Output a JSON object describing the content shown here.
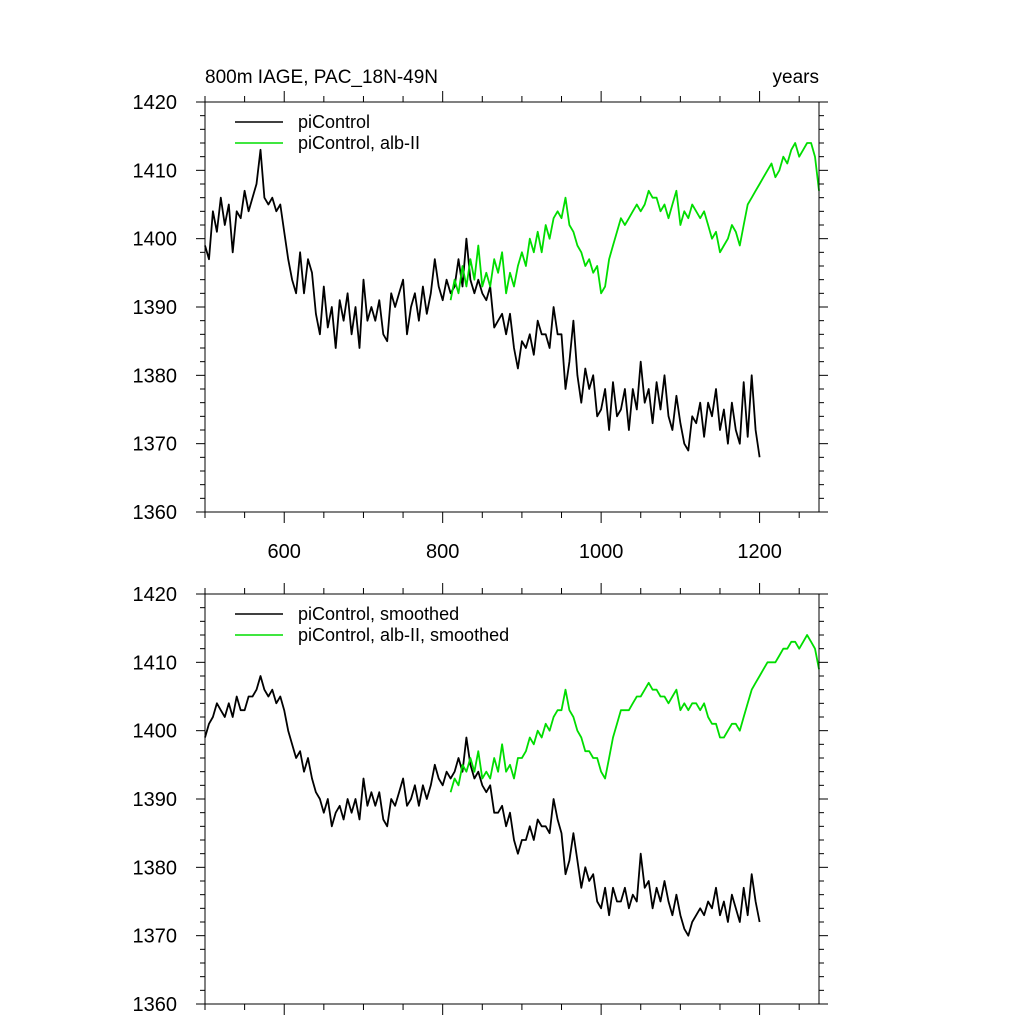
{
  "chart_data": [
    {
      "type": "line",
      "title": "800m IAGE, PAC_18N-49N",
      "title_right": "years",
      "xlim": [
        500,
        1275
      ],
      "ylim": [
        1360,
        1420
      ],
      "xticks": [
        600,
        800,
        1000,
        1200
      ],
      "yticks": [
        1360,
        1370,
        1380,
        1390,
        1400,
        1410,
        1420
      ],
      "show_xtick_labels": true,
      "legend_position": "top-left",
      "series": [
        {
          "name": "piControl",
          "color": "#000000",
          "x": [
            500,
            505,
            510,
            515,
            520,
            525,
            530,
            535,
            540,
            545,
            550,
            555,
            560,
            565,
            570,
            575,
            580,
            585,
            590,
            595,
            600,
            605,
            610,
            615,
            620,
            625,
            630,
            635,
            640,
            645,
            650,
            655,
            660,
            665,
            670,
            675,
            680,
            685,
            690,
            695,
            700,
            705,
            710,
            715,
            720,
            725,
            730,
            735,
            740,
            745,
            750,
            755,
            760,
            765,
            770,
            775,
            780,
            785,
            790,
            795,
            800,
            805,
            810,
            815,
            820,
            825,
            830,
            835,
            840,
            845,
            850,
            855,
            860,
            865,
            870,
            875,
            880,
            885,
            890,
            895,
            900,
            905,
            910,
            915,
            920,
            925,
            930,
            935,
            940,
            945,
            950,
            955,
            960,
            965,
            970,
            975,
            980,
            985,
            990,
            995,
            1000,
            1005,
            1010,
            1015,
            1020,
            1025,
            1030,
            1035,
            1040,
            1045,
            1050,
            1055,
            1060,
            1065,
            1070,
            1075,
            1080,
            1085,
            1090,
            1095,
            1100,
            1105,
            1110,
            1115,
            1120,
            1125,
            1130,
            1135,
            1140,
            1145,
            1150,
            1155,
            1160,
            1165,
            1170,
            1175,
            1180,
            1185,
            1190,
            1195,
            1200
          ],
          "y": [
            1399,
            1397,
            1404,
            1401,
            1406,
            1402,
            1405,
            1398,
            1404,
            1403,
            1407,
            1404,
            1406,
            1408,
            1413,
            1406,
            1405,
            1406,
            1404,
            1405,
            1401,
            1397,
            1394,
            1392,
            1398,
            1392,
            1397,
            1395,
            1389,
            1386,
            1393,
            1387,
            1390,
            1384,
            1391,
            1388,
            1392,
            1386,
            1390,
            1384,
            1394,
            1388,
            1390,
            1388,
            1391,
            1386,
            1385,
            1392,
            1390,
            1392,
            1394,
            1386,
            1390,
            1392,
            1388,
            1393,
            1389,
            1392,
            1397,
            1393,
            1391,
            1394,
            1392,
            1393,
            1397,
            1393,
            1400,
            1394,
            1392,
            1394,
            1392,
            1391,
            1393,
            1387,
            1388,
            1389,
            1386,
            1389,
            1384,
            1381,
            1385,
            1384,
            1386,
            1383,
            1388,
            1386,
            1386,
            1384,
            1390,
            1386,
            1386,
            1378,
            1382,
            1388,
            1380,
            1376,
            1381,
            1378,
            1380,
            1374,
            1375,
            1378,
            1372,
            1379,
            1374,
            1375,
            1378,
            1372,
            1378,
            1375,
            1382,
            1376,
            1378,
            1373,
            1379,
            1375,
            1380,
            1374,
            1372,
            1377,
            1373,
            1370,
            1369,
            1374,
            1373,
            1376,
            1371,
            1376,
            1374,
            1378,
            1372,
            1375,
            1370,
            1376,
            1372,
            1370,
            1379,
            1371,
            1380,
            1372,
            1368
          ]
        },
        {
          "name": "piControl, alb-II",
          "color": "#00dd00",
          "x": [
            810,
            815,
            820,
            825,
            830,
            835,
            840,
            845,
            850,
            855,
            860,
            865,
            870,
            875,
            880,
            885,
            890,
            895,
            900,
            905,
            910,
            915,
            920,
            925,
            930,
            935,
            940,
            945,
            950,
            955,
            960,
            965,
            970,
            975,
            980,
            985,
            990,
            995,
            1000,
            1005,
            1010,
            1015,
            1020,
            1025,
            1030,
            1035,
            1040,
            1045,
            1050,
            1055,
            1060,
            1065,
            1070,
            1075,
            1080,
            1085,
            1090,
            1095,
            1100,
            1105,
            1110,
            1115,
            1120,
            1125,
            1130,
            1135,
            1140,
            1145,
            1150,
            1155,
            1160,
            1165,
            1170,
            1175,
            1180,
            1185,
            1190,
            1195,
            1200,
            1205,
            1210,
            1215,
            1220,
            1225,
            1230,
            1235,
            1240,
            1245,
            1250,
            1255,
            1260,
            1265,
            1270,
            1275
          ],
          "y": [
            1391,
            1394,
            1392,
            1396,
            1393,
            1397,
            1394,
            1399,
            1393,
            1395,
            1393,
            1397,
            1395,
            1398,
            1392,
            1395,
            1393,
            1396,
            1398,
            1396,
            1400,
            1398,
            1401,
            1398,
            1402,
            1400,
            1403,
            1404,
            1403,
            1406,
            1402,
            1401,
            1399,
            1398,
            1396,
            1397,
            1395,
            1396,
            1392,
            1393,
            1397,
            1399,
            1401,
            1403,
            1402,
            1403,
            1404,
            1405,
            1404,
            1405,
            1407,
            1406,
            1406,
            1404,
            1405,
            1403,
            1405,
            1407,
            1402,
            1404,
            1403,
            1405,
            1404,
            1403,
            1404,
            1402,
            1400,
            1401,
            1398,
            1399,
            1400,
            1402,
            1401,
            1399,
            1402,
            1405,
            1406,
            1407,
            1408,
            1409,
            1410,
            1411,
            1409,
            1410,
            1412,
            1411,
            1413,
            1414,
            1412,
            1413,
            1414,
            1414,
            1412,
            1407
          ]
        }
      ]
    },
    {
      "type": "line",
      "title": "",
      "title_right": "",
      "xlim": [
        500,
        1275
      ],
      "ylim": [
        1360,
        1420
      ],
      "xticks": [
        600,
        800,
        1000,
        1200
      ],
      "yticks": [
        1360,
        1370,
        1380,
        1390,
        1400,
        1410,
        1420
      ],
      "show_xtick_labels": false,
      "legend_position": "top-left",
      "series": [
        {
          "name": "piControl, smoothed",
          "color": "#000000",
          "x": [
            500,
            505,
            510,
            515,
            520,
            525,
            530,
            535,
            540,
            545,
            550,
            555,
            560,
            565,
            570,
            575,
            580,
            585,
            590,
            595,
            600,
            605,
            610,
            615,
            620,
            625,
            630,
            635,
            640,
            645,
            650,
            655,
            660,
            665,
            670,
            675,
            680,
            685,
            690,
            695,
            700,
            705,
            710,
            715,
            720,
            725,
            730,
            735,
            740,
            745,
            750,
            755,
            760,
            765,
            770,
            775,
            780,
            785,
            790,
            795,
            800,
            805,
            810,
            815,
            820,
            825,
            830,
            835,
            840,
            845,
            850,
            855,
            860,
            865,
            870,
            875,
            880,
            885,
            890,
            895,
            900,
            905,
            910,
            915,
            920,
            925,
            930,
            935,
            940,
            945,
            950,
            955,
            960,
            965,
            970,
            975,
            980,
            985,
            990,
            995,
            1000,
            1005,
            1010,
            1015,
            1020,
            1025,
            1030,
            1035,
            1040,
            1045,
            1050,
            1055,
            1060,
            1065,
            1070,
            1075,
            1080,
            1085,
            1090,
            1095,
            1100,
            1105,
            1110,
            1115,
            1120,
            1125,
            1130,
            1135,
            1140,
            1145,
            1150,
            1155,
            1160,
            1165,
            1170,
            1175,
            1180,
            1185,
            1190,
            1195,
            1200
          ],
          "y": [
            1399,
            1401,
            1402,
            1404,
            1403,
            1402,
            1404,
            1402,
            1405,
            1403,
            1403,
            1405,
            1405,
            1406,
            1408,
            1406,
            1405,
            1406,
            1404,
            1405,
            1403,
            1400,
            1398,
            1396,
            1397,
            1394,
            1396,
            1393,
            1391,
            1390,
            1388,
            1390,
            1386,
            1388,
            1389,
            1387,
            1390,
            1388,
            1390,
            1387,
            1393,
            1389,
            1391,
            1389,
            1391,
            1387,
            1386,
            1390,
            1389,
            1391,
            1393,
            1389,
            1390,
            1392,
            1389,
            1392,
            1390,
            1392,
            1395,
            1393,
            1392,
            1394,
            1393,
            1394,
            1396,
            1394,
            1399,
            1395,
            1393,
            1394,
            1392,
            1391,
            1392,
            1388,
            1388,
            1389,
            1386,
            1388,
            1384,
            1382,
            1384,
            1384,
            1386,
            1384,
            1387,
            1386,
            1386,
            1385,
            1390,
            1387,
            1385,
            1379,
            1381,
            1385,
            1381,
            1377,
            1380,
            1378,
            1379,
            1375,
            1374,
            1377,
            1373,
            1377,
            1375,
            1375,
            1377,
            1374,
            1376,
            1375,
            1382,
            1377,
            1378,
            1374,
            1377,
            1375,
            1378,
            1375,
            1373,
            1376,
            1373,
            1371,
            1370,
            1372,
            1373,
            1374,
            1373,
            1375,
            1374,
            1377,
            1373,
            1375,
            1372,
            1376,
            1374,
            1372,
            1377,
            1373,
            1379,
            1375,
            1372
          ]
        },
        {
          "name": "piControl, alb-II, smoothed",
          "color": "#00dd00",
          "x": [
            810,
            815,
            820,
            825,
            830,
            835,
            840,
            845,
            850,
            855,
            860,
            865,
            870,
            875,
            880,
            885,
            890,
            895,
            900,
            905,
            910,
            915,
            920,
            925,
            930,
            935,
            940,
            945,
            950,
            955,
            960,
            965,
            970,
            975,
            980,
            985,
            990,
            995,
            1000,
            1005,
            1010,
            1015,
            1020,
            1025,
            1030,
            1035,
            1040,
            1045,
            1050,
            1055,
            1060,
            1065,
            1070,
            1075,
            1080,
            1085,
            1090,
            1095,
            1100,
            1105,
            1110,
            1115,
            1120,
            1125,
            1130,
            1135,
            1140,
            1145,
            1150,
            1155,
            1160,
            1165,
            1170,
            1175,
            1180,
            1185,
            1190,
            1195,
            1200,
            1205,
            1210,
            1215,
            1220,
            1225,
            1230,
            1235,
            1240,
            1245,
            1250,
            1255,
            1260,
            1265,
            1270,
            1275
          ],
          "y": [
            1391,
            1393,
            1392,
            1395,
            1394,
            1396,
            1394,
            1397,
            1393,
            1394,
            1393,
            1396,
            1394,
            1398,
            1394,
            1395,
            1393,
            1396,
            1396,
            1397,
            1399,
            1398,
            1400,
            1399,
            1401,
            1400,
            1402,
            1403,
            1403,
            1406,
            1403,
            1402,
            1400,
            1399,
            1397,
            1397,
            1396,
            1396,
            1394,
            1393,
            1396,
            1399,
            1401,
            1403,
            1403,
            1403,
            1404,
            1405,
            1405,
            1406,
            1407,
            1406,
            1406,
            1405,
            1405,
            1404,
            1405,
            1406,
            1403,
            1404,
            1403,
            1404,
            1404,
            1403,
            1404,
            1402,
            1401,
            1401,
            1399,
            1399,
            1400,
            1401,
            1401,
            1400,
            1402,
            1404,
            1406,
            1407,
            1408,
            1409,
            1410,
            1410,
            1410,
            1411,
            1412,
            1412,
            1413,
            1413,
            1412,
            1413,
            1414,
            1413,
            1412,
            1409
          ]
        }
      ]
    }
  ]
}
